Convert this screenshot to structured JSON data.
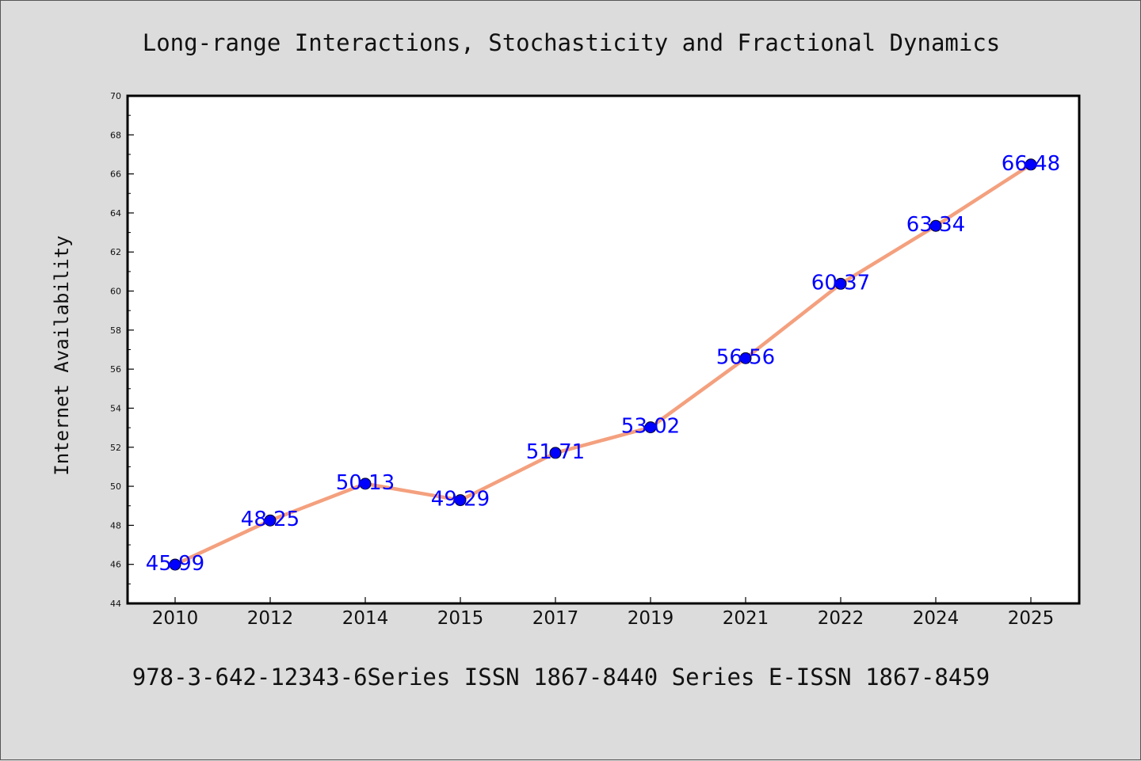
{
  "chart_data": {
    "type": "line",
    "title": "Long-range Interactions, Stochasticity and Fractional Dynamics",
    "ylabel": "Internet Availability",
    "xlabel": "",
    "footer": "978-3-642-12343-6Series ISSN 1867-8440 Series E-ISSN 1867-8459",
    "categories": [
      "2010",
      "2012",
      "2014",
      "2015",
      "2017",
      "2019",
      "2021",
      "2022",
      "2024",
      "2025"
    ],
    "values": [
      45.99,
      48.25,
      50.13,
      49.29,
      51.71,
      53.02,
      56.56,
      60.37,
      63.34,
      66.48
    ],
    "data_labels": [
      "45.99",
      "48.25",
      "50.13",
      "49.29",
      "51.71",
      "53.02",
      "56.56",
      "60.37",
      "63.34",
      "66.48"
    ],
    "ylim": [
      44,
      70
    ],
    "yticks": [
      "44",
      "46",
      "48",
      "50",
      "52",
      "54",
      "56",
      "58",
      "60",
      "62",
      "64",
      "66",
      "68",
      "70"
    ],
    "grid": false,
    "line_color": "#f4a07e",
    "marker_color": "#0000ff",
    "label_color": "#0000ff",
    "background": "#dcdcdc",
    "plot_background": "#ffffff"
  }
}
